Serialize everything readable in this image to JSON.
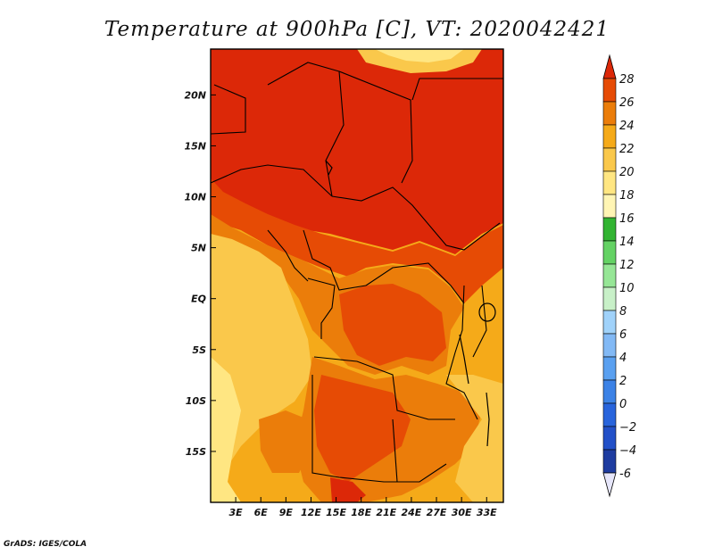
{
  "chart_data": {
    "type": "heatmap",
    "title": "Temperature at 900hPa [C], VT: 2020042421",
    "variable": "Temperature at 900hPa [C]",
    "valid_time": "2020042421",
    "x_range": [
      0,
      35
    ],
    "y_range": [
      -20,
      24.5
    ],
    "x_ticks": [
      {
        "value": 3,
        "label": "3E"
      },
      {
        "value": 6,
        "label": "6E"
      },
      {
        "value": 9,
        "label": "9E"
      },
      {
        "value": 12,
        "label": "12E"
      },
      {
        "value": 15,
        "label": "15E"
      },
      {
        "value": 18,
        "label": "18E"
      },
      {
        "value": 21,
        "label": "21E"
      },
      {
        "value": 24,
        "label": "24E"
      },
      {
        "value": 27,
        "label": "27E"
      },
      {
        "value": 30,
        "label": "30E"
      },
      {
        "value": 33,
        "label": "33E"
      }
    ],
    "y_ticks": [
      {
        "value": 20,
        "label": "20N"
      },
      {
        "value": 15,
        "label": "15N"
      },
      {
        "value": 10,
        "label": "10N"
      },
      {
        "value": 5,
        "label": "5N"
      },
      {
        "value": 0,
        "label": "EQ"
      },
      {
        "value": -5,
        "label": "5S"
      },
      {
        "value": -10,
        "label": "10S"
      },
      {
        "value": -15,
        "label": "15S"
      }
    ],
    "colorbar": {
      "levels": [
        -6,
        -4,
        -2,
        0,
        2,
        4,
        6,
        8,
        10,
        12,
        14,
        16,
        18,
        20,
        22,
        24,
        26,
        28
      ],
      "level_labels": [
        "-6",
        "−4",
        "−2",
        "0",
        "2",
        "4",
        "6",
        "8",
        "10",
        "12",
        "14",
        "16",
        "18",
        "20",
        "22",
        "24",
        "26",
        "28"
      ],
      "colors": [
        "#1e3ca0",
        "#2250c8",
        "#2864dc",
        "#3c82e6",
        "#5aa0f0",
        "#82b9f5",
        "#a0d2fa",
        "#c8f0c8",
        "#96e696",
        "#64d264",
        "#32b432",
        "#fff5b4",
        "#ffe682",
        "#fac84b",
        "#f5aa19",
        "#eb7d0a",
        "#e64b05",
        "#d21e00"
      ],
      "under_color": "#e6e6fa",
      "over_color": "#dc2808"
    },
    "regions": [
      {
        "band": "18N-24N north",
        "value_range": "26-28+"
      },
      {
        "band": "8N-18N",
        "value_range": "26-28+"
      },
      {
        "band": "2N-8N",
        "value_range": "24-26"
      },
      {
        "band": "EQ-10S interior",
        "value_range": "22-26"
      },
      {
        "band": "Atlantic coast",
        "value_range": "18-22"
      },
      {
        "band": "10S-20S interior",
        "value_range": "22-26"
      }
    ]
  },
  "footer": "GrADS: IGES/COLA"
}
